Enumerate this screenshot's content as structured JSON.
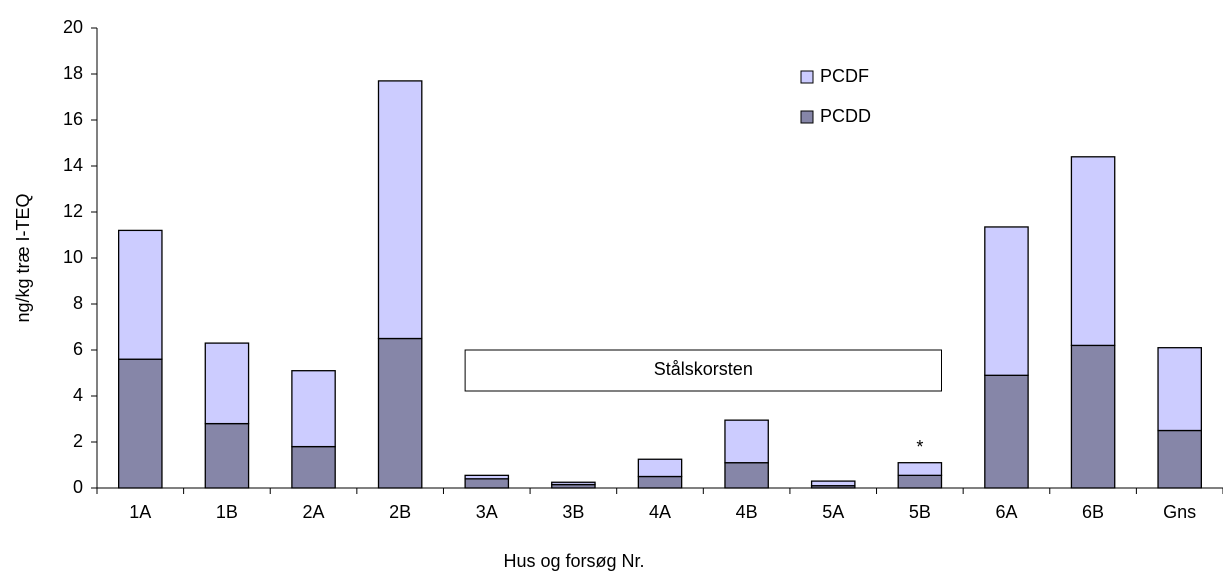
{
  "chart_data": {
    "type": "stacked_bar",
    "x_label": "Hus og forsøg Nr.",
    "y_label": "ng/kg træ I-TEQ",
    "categories": [
      "1A",
      "1B",
      "2A",
      "2B",
      "3A",
      "3B",
      "4A",
      "4B",
      "5A",
      "5B",
      "6A",
      "6B",
      "Gns"
    ],
    "series": [
      {
        "name": "PCDD",
        "color": "#8686a8",
        "values": [
          5.6,
          2.8,
          1.8,
          6.5,
          0.4,
          0.15,
          0.5,
          1.1,
          0.1,
          0.55,
          4.9,
          6.2,
          2.5
        ]
      },
      {
        "name": "PCDF",
        "color": "#ccccff",
        "values": [
          5.6,
          3.5,
          3.3,
          11.2,
          0.15,
          0.1,
          0.75,
          1.85,
          0.2,
          0.55,
          6.45,
          8.2,
          3.6
        ]
      }
    ],
    "ylim": [
      0,
      20
    ],
    "yticks": [
      0,
      2,
      4,
      6,
      8,
      10,
      12,
      14,
      16,
      18,
      20
    ],
    "annotation_box": "Stålskorsten",
    "note": "*"
  }
}
